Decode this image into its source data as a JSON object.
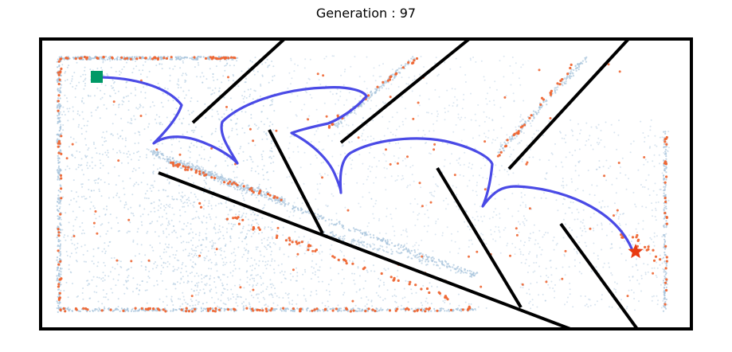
{
  "title": "Generation : 97",
  "legend": {
    "start": {
      "shape": "square",
      "color": "#009966"
    },
    "goal": {
      "shape": "star",
      "color": "#e83a10"
    }
  },
  "colors": {
    "wall": "#000000",
    "trajectory": "#4a4ae6",
    "population": "#a8c4dc",
    "elite": "#ee6633"
  }
}
